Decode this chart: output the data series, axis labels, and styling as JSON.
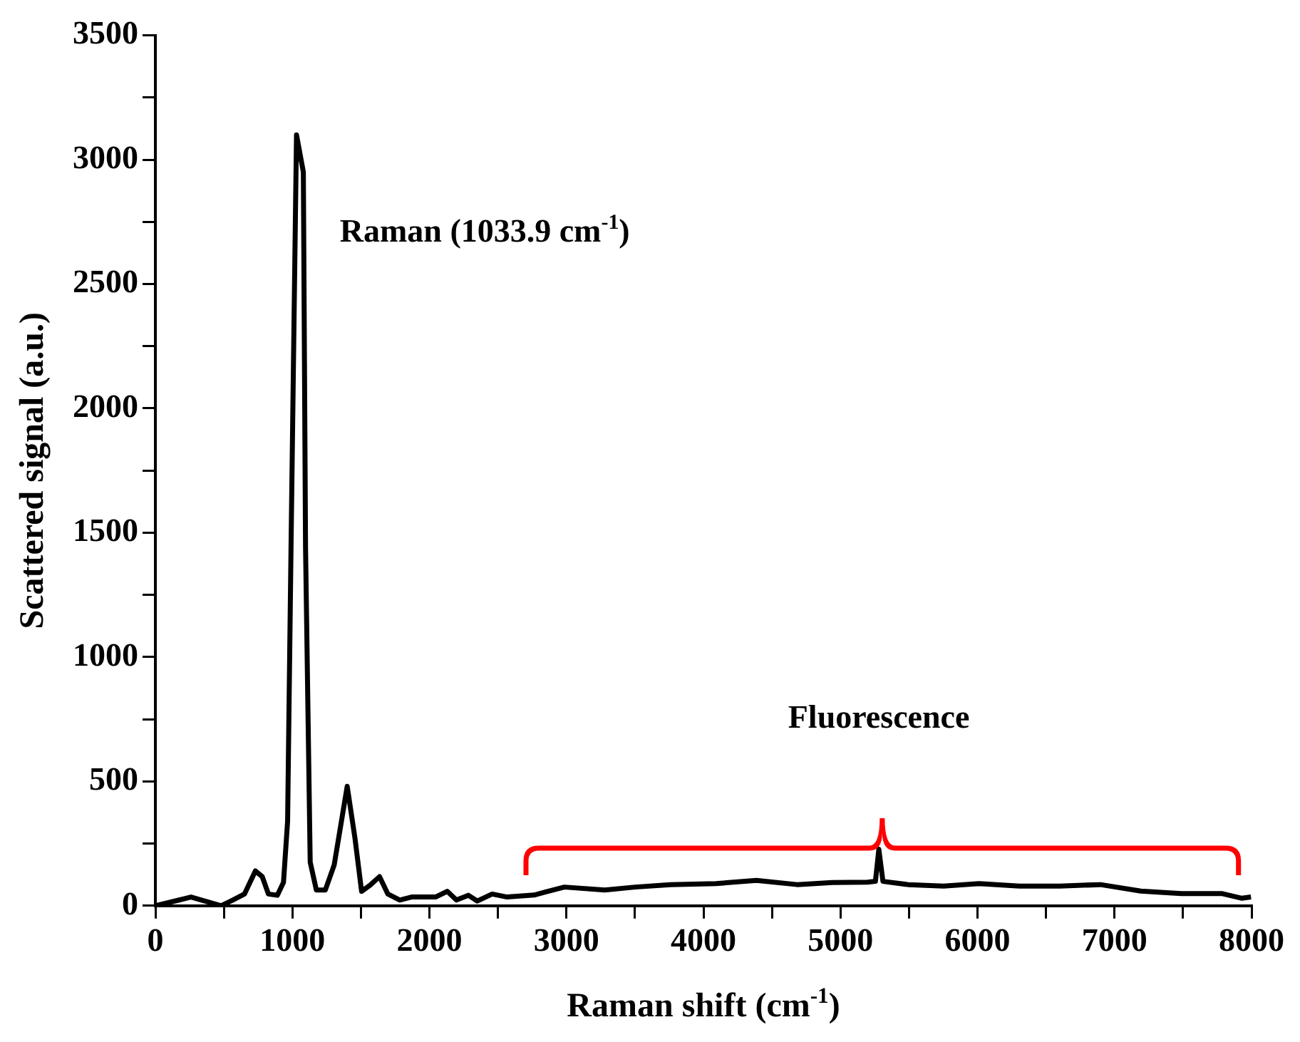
{
  "chart_data": {
    "type": "line",
    "xlabel": "Raman shift (cm$^{-1}$)",
    "ylabel": "Scattered signal (a.u.)",
    "series": [
      {
        "color": "#000000",
        "x": [
          0,
          174,
          260,
          480,
          565,
          650,
          730,
          780,
          825,
          890,
          935,
          965,
          990,
          1030,
          1080,
          1096,
          1130,
          1175,
          1240,
          1305,
          1400,
          1457,
          1505,
          1566,
          1636,
          1697,
          1784,
          1870,
          2045,
          2130,
          2197,
          2284,
          2350,
          2458,
          2567,
          2764,
          2985,
          3280,
          3502,
          3760,
          4092,
          4387,
          4683,
          4941,
          5199,
          5255,
          5280,
          5310,
          5494,
          5753,
          6011,
          6306,
          6601,
          6897,
          7192,
          7487,
          7782,
          7930,
          7996
        ],
        "values": [
          0,
          23,
          35,
          0,
          23,
          47,
          140,
          117,
          47,
          42,
          94,
          340,
          1440,
          3100,
          2950,
          1440,
          175,
          63,
          63,
          164,
          480,
          270,
          58,
          82,
          117,
          47,
          23,
          35,
          35,
          58,
          23,
          42,
          19,
          47,
          35,
          43,
          75,
          63,
          75,
          85,
          89,
          102,
          85,
          93,
          95,
          98,
          227,
          98,
          85,
          79,
          89,
          79,
          79,
          85,
          59,
          49,
          49,
          30,
          35
        ]
      }
    ],
    "xlim": [
      0,
      8000
    ],
    "ylim": [
      0,
      3500
    ],
    "xticks": [
      0,
      {
        "value": 500,
        "label": null
      },
      1000,
      {
        "value": 1500,
        "label": null
      },
      2000,
      {
        "value": 2500,
        "label": null
      },
      3000,
      {
        "value": 3500,
        "label": null
      },
      4000,
      {
        "value": 4500,
        "label": null
      },
      5000,
      {
        "value": 5500,
        "label": null
      },
      6000,
      {
        "value": 6500,
        "label": null
      },
      7000,
      {
        "value": 7500,
        "label": null
      },
      8000
    ],
    "yticks": [
      0,
      {
        "value": 250,
        "label": null
      },
      500,
      {
        "value": 750,
        "label": null
      },
      1000,
      {
        "value": 1250,
        "label": null
      },
      1500,
      {
        "value": 1750,
        "label": null
      },
      2000,
      {
        "value": 2250,
        "label": null
      },
      2500,
      {
        "value": 2750,
        "label": null
      },
      3000,
      {
        "value": 3250,
        "label": null
      },
      3500
    ],
    "grid": false,
    "legend": false,
    "marker": "none",
    "line_style": "solid",
    "annotations": [
      {
        "text": "Raman (1033.9 cm$^{-1}$)",
        "x": 1033.9,
        "y": 3100
      },
      "Fluorescence"
    ]
  }
}
